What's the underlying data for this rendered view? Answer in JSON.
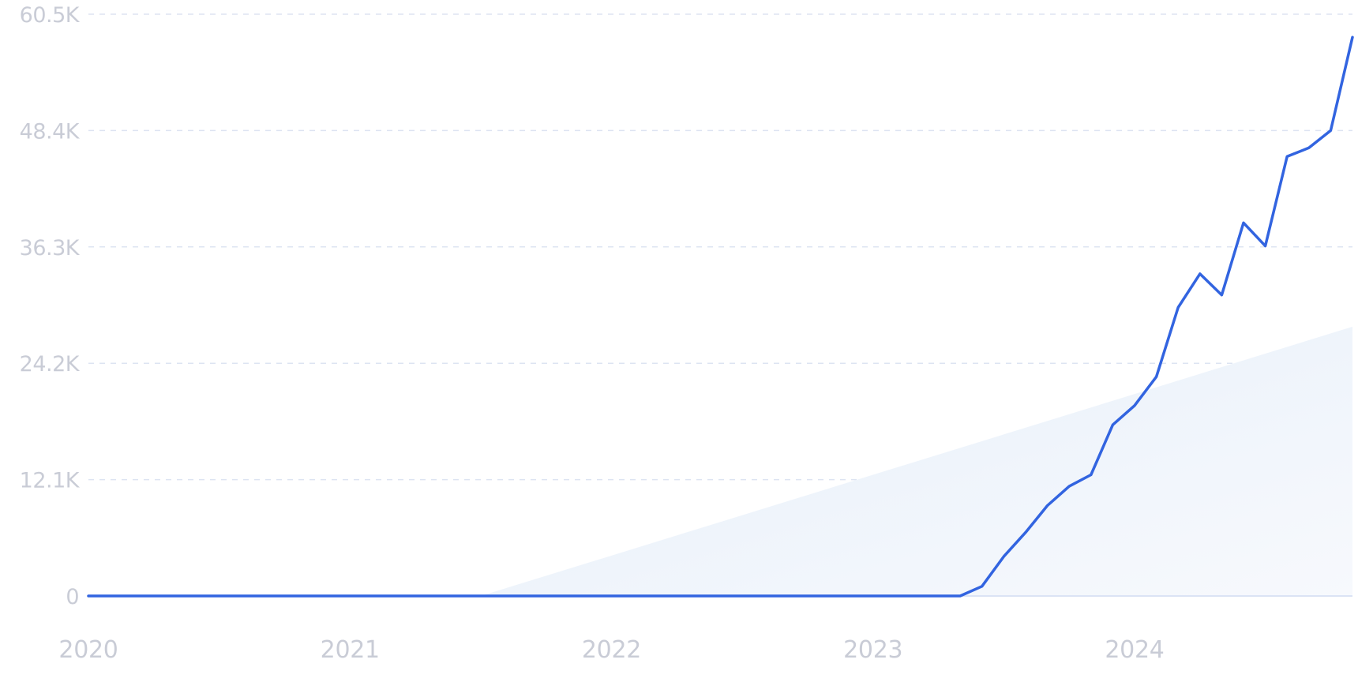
{
  "chart_data": {
    "type": "line",
    "title": "",
    "xlabel": "",
    "ylabel": "",
    "ylim": [
      0,
      60500
    ],
    "xlim": [
      "2020-01",
      "2024-11"
    ],
    "grid": true,
    "legend": "none",
    "y_ticks": [
      {
        "value": 0,
        "label": "0"
      },
      {
        "value": 12100,
        "label": "12.1K"
      },
      {
        "value": 24200,
        "label": "24.2K"
      },
      {
        "value": 36300,
        "label": "36.3K"
      },
      {
        "value": 48400,
        "label": "48.4K"
      },
      {
        "value": 60500,
        "label": "60.5K"
      }
    ],
    "x_ticks": [
      {
        "value": "2020-01",
        "label": "2020"
      },
      {
        "value": "2021-01",
        "label": "2021"
      },
      {
        "value": "2022-01",
        "label": "2022"
      },
      {
        "value": "2023-01",
        "label": "2023"
      },
      {
        "value": "2024-01",
        "label": "2024"
      }
    ],
    "series": [
      {
        "color": "#3264e0",
        "x": [
          "2020-01",
          "2023-05",
          "2023-06",
          "2023-07",
          "2023-08",
          "2023-09",
          "2023-10",
          "2023-11",
          "2023-12",
          "2024-01",
          "2024-02",
          "2024-03",
          "2024-04",
          "2024-05",
          "2024-06",
          "2024-07",
          "2024-08",
          "2024-09",
          "2024-10",
          "2024-11"
        ],
        "values": [
          0,
          0,
          1000,
          4100,
          6600,
          9400,
          11400,
          12600,
          17800,
          19800,
          22800,
          30000,
          33500,
          31300,
          38800,
          36400,
          45700,
          46600,
          48400,
          58100
        ]
      }
    ],
    "trend": {
      "color": "#e8f0fb",
      "x": [
        "2021-07",
        "2024-11"
      ],
      "values": [
        0,
        28000
      ]
    }
  }
}
